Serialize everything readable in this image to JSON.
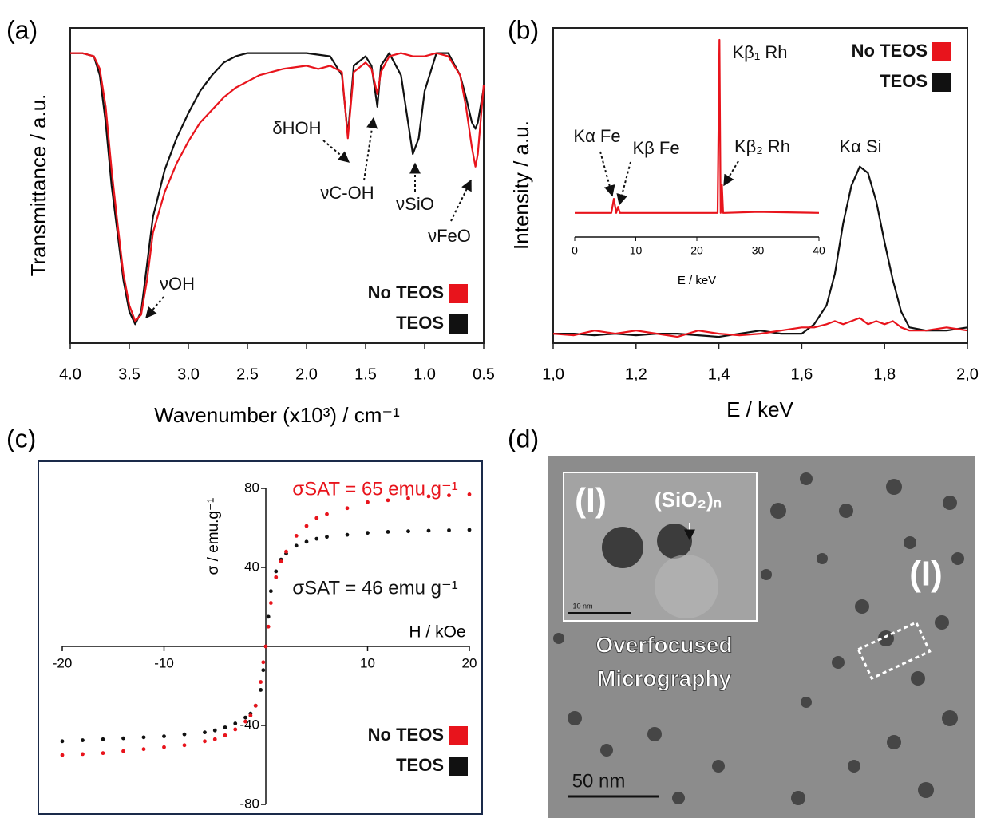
{
  "chart_data": [
    {
      "type": "line",
      "label": "(a)",
      "xlabel": "Wavenumber (x10³) / cm⁻¹",
      "ylabel": "Transmittance / a.u.",
      "xlim": [
        4.0,
        0.5
      ],
      "xticks": [
        {
          "value": 4,
          "label": "4.0"
        },
        3.5,
        {
          "value": 3,
          "label": "3.0"
        },
        2.5,
        {
          "value": 2,
          "label": "2.0"
        },
        1.5,
        {
          "value": 1,
          "label": "1.0"
        },
        0.5
      ],
      "ylim": [
        0,
        100
      ],
      "grid": false,
      "legend": "lower right",
      "x": [
        4.0,
        3.9,
        3.8,
        3.75,
        3.7,
        3.65,
        3.6,
        3.55,
        3.5,
        3.45,
        3.4,
        3.35,
        3.3,
        3.2,
        3.1,
        3.0,
        2.9,
        2.8,
        2.7,
        2.6,
        2.5,
        2.4,
        2.2,
        2.0,
        1.9,
        1.8,
        1.7,
        1.65,
        1.6,
        1.5,
        1.45,
        1.4,
        1.37,
        1.3,
        1.2,
        1.1,
        1.05,
        1.0,
        0.9,
        0.8,
        0.7,
        0.65,
        0.6,
        0.57,
        0.55,
        0.5
      ],
      "series": [
        {
          "name": "TEOS",
          "color": "#111111",
          "values": [
            92,
            92,
            91,
            85,
            70,
            50,
            35,
            20,
            10,
            6,
            10,
            25,
            40,
            55,
            65,
            73,
            80,
            85,
            89,
            91,
            92,
            92,
            92,
            92,
            91.5,
            91,
            85,
            66,
            88,
            91,
            88,
            75,
            88,
            92,
            85,
            60,
            65,
            80,
            92,
            92,
            85,
            78,
            70,
            68,
            70,
            81
          ]
        },
        {
          "name": "No TEOS",
          "color": "#e8141c",
          "values": [
            92,
            92,
            91,
            87,
            75,
            55,
            38,
            22,
            12,
            7,
            9,
            20,
            35,
            48,
            57,
            64,
            70,
            74,
            78,
            81,
            83,
            85,
            87,
            88,
            87,
            88,
            86,
            65,
            86,
            89,
            87,
            79,
            86,
            91,
            92,
            91,
            91,
            91,
            92,
            91,
            85,
            75,
            62,
            56,
            60,
            82
          ]
        }
      ],
      "legend_order": [
        1,
        0
      ],
      "annotations": [
        {
          "text": "νOH"
        },
        {
          "text": "δHOH"
        },
        {
          "text": "νC-OH"
        },
        {
          "text": "νSiO"
        },
        {
          "text": "νFeO"
        }
      ]
    },
    {
      "type": "line",
      "label": "(b)",
      "xlabel": "E / keV",
      "ylabel": "Intensity / a.u.",
      "xlim": [
        1.0,
        2.0
      ],
      "xticks": [
        {
          "value": 1.0,
          "label": "1,0"
        },
        {
          "value": 1.2,
          "label": "1,2"
        },
        {
          "value": 1.4,
          "label": "1,4"
        },
        {
          "value": 1.6,
          "label": "1,6"
        },
        {
          "value": 1.8,
          "label": "1,8"
        },
        {
          "value": 2.0,
          "label": "2,0"
        }
      ],
      "ylim": [
        0,
        100
      ],
      "grid": false,
      "legend": "upper right",
      "x": [
        1.0,
        1.05,
        1.1,
        1.15,
        1.2,
        1.25,
        1.3,
        1.35,
        1.4,
        1.45,
        1.5,
        1.55,
        1.6,
        1.63,
        1.66,
        1.68,
        1.7,
        1.72,
        1.74,
        1.76,
        1.78,
        1.8,
        1.82,
        1.84,
        1.86,
        1.9,
        1.95,
        2.0
      ],
      "series": [
        {
          "name": "TEOS",
          "color": "#111111",
          "values": [
            3,
            3,
            2.5,
            3,
            2.5,
            3,
            3,
            2.5,
            2,
            3,
            4,
            3,
            3,
            6,
            12,
            22,
            38,
            50,
            56,
            54,
            45,
            32,
            20,
            10,
            5,
            4,
            4,
            5
          ]
        },
        {
          "name": "No TEOS",
          "color": "#e8141c",
          "values": [
            3,
            2.5,
            4,
            3,
            4,
            3,
            2,
            4,
            3,
            2.5,
            3,
            4,
            5,
            5,
            6,
            7,
            6,
            7,
            8,
            6,
            7,
            6,
            7,
            5,
            4,
            4,
            5,
            4
          ]
        }
      ],
      "legend_order": [
        1,
        0
      ],
      "annotations": [
        {
          "text": "Kα Fe"
        },
        {
          "text": "Kβ Fe"
        },
        {
          "text": "Kβ₁ Rh"
        },
        {
          "text": "Kβ₂ Rh"
        },
        {
          "text": "Kα Si"
        }
      ],
      "inset": {
        "type": "line",
        "xlabel": "E / keV",
        "xlim": [
          0,
          40
        ],
        "xticks": [
          0,
          10,
          20,
          30,
          40
        ],
        "ylim": [
          0,
          100
        ],
        "x": [
          0,
          6.0,
          6.4,
          6.8,
          7.1,
          7.4,
          23.4,
          23.7,
          23.9,
          24.1,
          24.3,
          24.6,
          30,
          40
        ],
        "series": [
          {
            "color": "#e8141c",
            "values": [
              12,
              12,
              19,
              12,
              15,
              12,
              12,
              98,
              12,
              26,
              12,
              12,
              12.5,
              12
            ]
          }
        ]
      }
    },
    {
      "type": "scatter",
      "label": "(c)",
      "xlabel": "H / kOe",
      "ylabel": "σ / emu.g⁻¹",
      "xlim": [
        -20,
        20
      ],
      "xticks": [
        -20,
        -10,
        10,
        20
      ],
      "ylim": [
        -80,
        80
      ],
      "yticks": [
        80,
        40,
        -40,
        -80
      ],
      "grid": false,
      "legend": "lower right",
      "x": [
        -20,
        -18,
        -16,
        -14,
        -12,
        -10,
        -8,
        -6,
        -5,
        -4,
        -3,
        -2,
        -1.5,
        -1,
        -0.5,
        -0.25,
        0,
        0.25,
        0.5,
        1,
        1.5,
        2,
        3,
        4,
        5,
        6,
        8,
        10,
        12,
        14,
        16,
        18,
        20
      ],
      "series": [
        {
          "name": "TEOS",
          "color": "#111111",
          "values": [
            -48,
            -47.5,
            -47,
            -46.5,
            -46,
            -45.5,
            -44.5,
            -43.5,
            -42.5,
            -41,
            -39,
            -36,
            -34,
            -30,
            -22,
            -12,
            0,
            15,
            28,
            38,
            44,
            47,
            51,
            53,
            54.5,
            55.5,
            56.5,
            57.5,
            58,
            58.3,
            58.6,
            58.8,
            59
          ]
        },
        {
          "name": "No TEOS",
          "color": "#e8141c",
          "values": [
            -55,
            -54.5,
            -54,
            -53,
            -52,
            -51,
            -50,
            -48,
            -47,
            -45,
            -42,
            -38,
            -35,
            -30,
            -18,
            -8,
            0,
            10,
            22,
            35,
            43,
            48,
            56,
            61,
            65,
            67,
            70,
            73,
            74,
            75,
            76,
            76.5,
            77
          ]
        }
      ],
      "legend_order": [
        1,
        0
      ],
      "annotations": [
        {
          "text": "σSAT = 65 emu g⁻¹",
          "color": "#e8141c"
        },
        {
          "text": "σSAT = 46 emu g⁻¹",
          "color": "#111111"
        }
      ]
    }
  ],
  "micrograph": {
    "label": "(d)",
    "inset_label": "(I)",
    "particle_label": "(SiO₂)ₙ",
    "inset_scale": "10 nm",
    "caption": [
      "Overfocused",
      "Micrography"
    ],
    "region_label": "(I)",
    "scale": "50 nm"
  }
}
